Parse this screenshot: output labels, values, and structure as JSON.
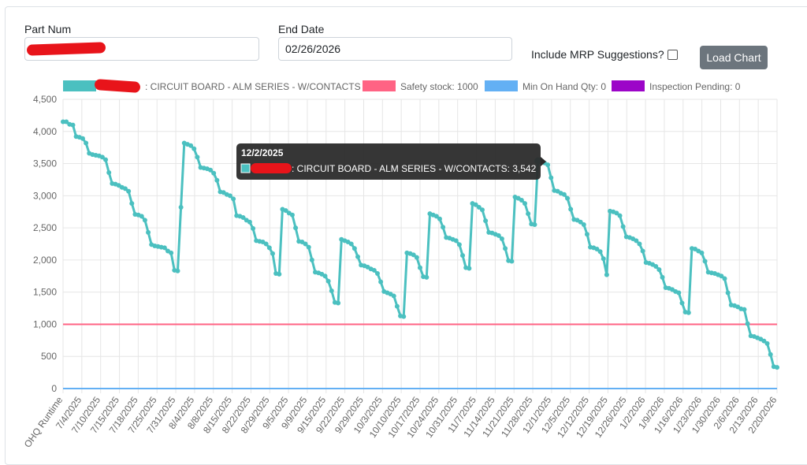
{
  "form": {
    "part_num_label": "Part Num",
    "part_num_value": "",
    "end_date_label": "End Date",
    "end_date_value": "02/26/2026",
    "mrp_label": "Include MRP Suggestions?",
    "load_button": "Load Chart"
  },
  "colors": {
    "onhand": "#4bc0c0",
    "safety": "#ff6384",
    "minqty": "#63b0f4",
    "inspection": "#9c05c8",
    "button": "#6c757d",
    "tooltip_bg": "#2b2b2b"
  },
  "chart_data": {
    "type": "line",
    "ylim": [
      0,
      4500
    ],
    "yticks": [
      "4,500",
      "4,000",
      "3,500",
      "3,000",
      "2,500",
      "2,000",
      "1,500",
      "1,000",
      "500",
      "0"
    ],
    "xlabels": [
      "OHQ Runtime",
      "7/4/2025",
      "7/10/2025",
      "7/15/2025",
      "7/18/2025",
      "7/25/2025",
      "7/31/2025",
      "8/4/2025",
      "8/8/2025",
      "8/15/2025",
      "8/22/2025",
      "8/29/2025",
      "9/5/2025",
      "9/9/2025",
      "9/15/2025",
      "9/22/2025",
      "9/29/2025",
      "10/3/2025",
      "10/10/2025",
      "10/17/2025",
      "10/24/2025",
      "10/31/2025",
      "11/7/2025",
      "11/14/2025",
      "11/21/2025",
      "11/28/2025",
      "12/1/2025",
      "12/5/2025",
      "12/12/2025",
      "12/19/2025",
      "12/26/2025",
      "1/2/2026",
      "1/9/2026",
      "1/16/2026",
      "1/23/2026",
      "1/30/2026",
      "2/6/2026",
      "2/13/2026",
      "2/20/2026"
    ],
    "legend": [
      {
        "label": ": CIRCUIT BOARD - ALM SERIES - W/CONTACTS",
        "color": "#4bc0c0"
      },
      {
        "label": "Safety stock: 1000",
        "color": "#ff6384"
      },
      {
        "label": "Min On Hand Qty: 0",
        "color": "#63b0f4"
      },
      {
        "label": "Inspection Pending: 0",
        "color": "#9c05c8"
      }
    ],
    "series": [
      {
        "label": ": CIRCUIT BOARD - ALM SERIES - W/CONTACTS",
        "values": [
          4150,
          4150,
          4110,
          4100,
          3920,
          3910,
          3890,
          3820,
          3660,
          3640,
          3630,
          3620,
          3600,
          3560,
          3360,
          3190,
          3180,
          3160,
          3130,
          3110,
          3070,
          2880,
          2710,
          2700,
          2680,
          2620,
          2430,
          2240,
          2220,
          2210,
          2200,
          2190,
          2140,
          2110,
          1840,
          1830,
          2820,
          3820,
          3800,
          3780,
          3730,
          3600,
          3440,
          3430,
          3420,
          3400,
          3350,
          3240,
          3060,
          3050,
          3020,
          3000,
          2950,
          2690,
          2680,
          2660,
          2620,
          2590,
          2490,
          2300,
          2290,
          2280,
          2250,
          2190,
          2100,
          1790,
          1780,
          2790,
          2770,
          2730,
          2700,
          2500,
          2290,
          2280,
          2250,
          2200,
          2000,
          1810,
          1800,
          1780,
          1750,
          1670,
          1520,
          1340,
          1330,
          2320,
          2300,
          2280,
          2250,
          2180,
          2050,
          1920,
          1910,
          1890,
          1860,
          1840,
          1790,
          1660,
          1510,
          1490,
          1470,
          1440,
          1280,
          1130,
          1120,
          2110,
          2100,
          2080,
          2040,
          1880,
          1740,
          1730,
          2720,
          2700,
          2680,
          2640,
          2510,
          2350,
          2340,
          2320,
          2300,
          2240,
          2070,
          1880,
          1870,
          2880,
          2860,
          2820,
          2780,
          2610,
          2430,
          2420,
          2400,
          2380,
          2330,
          2180,
          1990,
          1980,
          2980,
          2960,
          2930,
          2880,
          2720,
          2560,
          2550,
          3542,
          3530,
          3510,
          3480,
          3280,
          3080,
          3070,
          3040,
          3020,
          2960,
          2790,
          2630,
          2620,
          2590,
          2550,
          2400,
          2200,
          2190,
          2170,
          2130,
          2020,
          1770,
          2760,
          2750,
          2730,
          2690,
          2520,
          2360,
          2350,
          2330,
          2300,
          2250,
          2140,
          1960,
          1950,
          1930,
          1900,
          1850,
          1730,
          1570,
          1560,
          1540,
          1510,
          1490,
          1330,
          1190,
          1180,
          2180,
          2170,
          2140,
          2110,
          1980,
          1810,
          1800,
          1790,
          1770,
          1750,
          1710,
          1490,
          1300,
          1290,
          1270,
          1240,
          1230,
          1010,
          820,
          810,
          790,
          770,
          740,
          700,
          530,
          340,
          330
        ]
      },
      {
        "label": "Safety stock: 1000",
        "values": [
          1000
        ]
      },
      {
        "label": "Min On Hand Qty: 0",
        "values": [
          0
        ]
      },
      {
        "label": "Inspection Pending: 0",
        "values": [
          0
        ]
      }
    ],
    "tooltip": {
      "title": "12/2/2025",
      "body": ": CIRCUIT BOARD - ALM SERIES - W/CONTACTS: 3,542"
    }
  }
}
